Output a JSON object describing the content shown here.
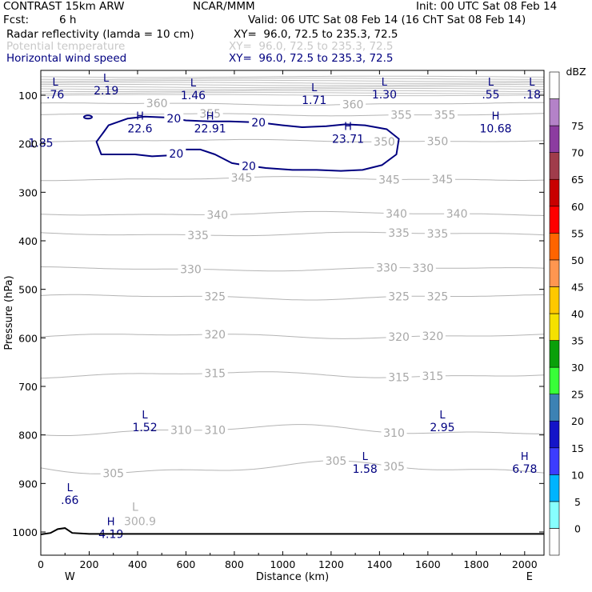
{
  "header": {
    "model": "CONTRAST 15km ARW",
    "org": "NCAR/MMM",
    "init": "Init: 00 UTC Sat 08 Feb 14",
    "fcst_label": "Fcst:",
    "fcst_value": "6 h",
    "valid": "Valid: 06 UTC Sat 08 Feb 14 (16 ChT Sat 08 Feb 14)"
  },
  "fields": [
    {
      "label": "Radar reflectivity (lamda = 10 cm)",
      "xy": "XY=  96.0, 72.5 to 235.3, 72.5",
      "color": "#000000"
    },
    {
      "label": "Potential temperature",
      "xy": "XY=  96.0, 72.5 to 235.3, 72.5",
      "color": "#bdbdbd"
    },
    {
      "label": "Horizontal wind speed",
      "xy": "XY=  96.0, 72.5 to 235.3, 72.5",
      "color": "#000080"
    }
  ],
  "chart_data": {
    "type": "contour-cross-section",
    "xlabel": "Distance (km)",
    "ylabel": "Pressure (hPa)",
    "xlim": [
      0,
      2080
    ],
    "ylim": [
      1050,
      60
    ],
    "x_ticks": [
      0,
      200,
      400,
      600,
      800,
      1000,
      1200,
      1400,
      1600,
      1800,
      2000
    ],
    "x_tick_labels": [
      "0",
      "200",
      "400",
      "600",
      "800",
      "1000",
      "1200",
      "1400",
      "1600",
      "1800",
      "2000"
    ],
    "y_ticks": [
      100,
      200,
      300,
      400,
      500,
      600,
      700,
      800,
      900,
      1000
    ],
    "y_tick_labels": [
      "100",
      "200",
      "300",
      "400",
      "500",
      "600",
      "700",
      "800",
      "900",
      "1000"
    ],
    "west_label": "W",
    "east_label": "E",
    "theta_contours": [
      {
        "label": "305",
        "p": 868,
        "amp": 10,
        "labels_x": [
          300,
          1220,
          1460
        ]
      },
      {
        "label": "310",
        "p": 790,
        "amp": 8,
        "labels_x": [
          580,
          720,
          1460
        ]
      },
      {
        "label": "315",
        "p": 676,
        "amp": 5,
        "labels_x": [
          720,
          1480,
          1620
        ]
      },
      {
        "label": "320",
        "p": 596,
        "amp": 4,
        "labels_x": [
          720,
          1480,
          1620
        ]
      },
      {
        "label": "325",
        "p": 516,
        "amp": 4,
        "labels_x": [
          720,
          1480,
          1640
        ]
      },
      {
        "label": "330",
        "p": 458,
        "amp": 3,
        "labels_x": [
          620,
          1430,
          1580
        ]
      },
      {
        "label": "335",
        "p": 386,
        "amp": 3,
        "labels_x": [
          650,
          1480,
          1640
        ]
      },
      {
        "label": "340",
        "p": 344,
        "amp": 3,
        "labels_x": [
          730,
          1470,
          1720
        ]
      },
      {
        "label": "345",
        "p": 272,
        "amp": 3,
        "labels_x": [
          830,
          1440,
          1660
        ]
      },
      {
        "label": "350",
        "p": 194,
        "amp": 2,
        "labels_x": [
          1420,
          1640
        ]
      },
      {
        "label": "355",
        "p": 140,
        "amp": 2,
        "labels_x": [
          700,
          1490,
          1670
        ]
      },
      {
        "label": "360",
        "p": 118,
        "amp": 2,
        "labels_x": [
          480,
          1290
        ]
      }
    ],
    "theta_extra_labels": [
      {
        "text": "300.9",
        "x": 410,
        "p": 986
      },
      {
        "text": "L",
        "x": 390,
        "p": 956
      }
    ],
    "wind_contour": {
      "label": "20",
      "points": [
        [
          280,
          162
        ],
        [
          360,
          148
        ],
        [
          430,
          144
        ],
        [
          520,
          146
        ],
        [
          600,
          152
        ],
        [
          700,
          154
        ],
        [
          780,
          154
        ],
        [
          900,
          156
        ],
        [
          1000,
          162
        ],
        [
          1080,
          166
        ],
        [
          1180,
          164
        ],
        [
          1260,
          160
        ],
        [
          1340,
          162
        ],
        [
          1430,
          170
        ],
        [
          1480,
          190
        ],
        [
          1470,
          222
        ],
        [
          1410,
          244
        ],
        [
          1330,
          254
        ],
        [
          1240,
          256
        ],
        [
          1140,
          254
        ],
        [
          1040,
          254
        ],
        [
          930,
          250
        ],
        [
          840,
          244
        ],
        [
          790,
          240
        ],
        [
          720,
          222
        ],
        [
          660,
          212
        ],
        [
          590,
          212
        ],
        [
          530,
          224
        ],
        [
          460,
          226
        ],
        [
          390,
          222
        ],
        [
          320,
          222
        ],
        [
          250,
          222
        ],
        [
          230,
          196
        ],
        [
          260,
          176
        ]
      ],
      "labels": [
        [
          550,
          148
        ],
        [
          900,
          156
        ],
        [
          560,
          220
        ],
        [
          860,
          246
        ]
      ]
    },
    "wind_extrema": [
      {
        "kind": "L",
        "value": ".76",
        "x": 60,
        "p": 80
      },
      {
        "kind": "L",
        "value": "2.19",
        "x": 270,
        "p": 72
      },
      {
        "kind": "L",
        "value": "1.46",
        "x": 630,
        "p": 82
      },
      {
        "kind": "L",
        "value": "1.71",
        "x": 1130,
        "p": 92
      },
      {
        "kind": "L",
        "value": "1.30",
        "x": 1420,
        "p": 80
      },
      {
        "kind": "L",
        "value": ".55",
        "x": 1860,
        "p": 80
      },
      {
        "kind": "L",
        "value": ".18",
        "x": 2030,
        "p": 80
      },
      {
        "kind": "",
        "value": "1.85",
        "x": 0,
        "p": 180
      },
      {
        "kind": "H",
        "value": "22.6",
        "x": 410,
        "p": 150
      },
      {
        "kind": "H",
        "value": "22.91",
        "x": 700,
        "p": 150
      },
      {
        "kind": "H",
        "value": "23.71",
        "x": 1270,
        "p": 172
      },
      {
        "kind": "H",
        "value": "10.68",
        "x": 1880,
        "p": 150
      },
      {
        "kind": "L",
        "value": "1.52",
        "x": 430,
        "p": 766
      },
      {
        "kind": "L",
        "value": "2.95",
        "x": 1660,
        "p": 766
      },
      {
        "kind": "L",
        "value": "1.58",
        "x": 1340,
        "p": 852
      },
      {
        "kind": "H",
        "value": "6.78",
        "x": 2000,
        "p": 852
      },
      {
        "kind": "L",
        "value": ".66",
        "x": 120,
        "p": 916
      },
      {
        "kind": "H",
        "value": "4.19",
        "x": 290,
        "p": 986
      }
    ],
    "colorbar": {
      "title": "dBZ",
      "levels": [
        "0",
        "5",
        "10",
        "15",
        "20",
        "25",
        "30",
        "35",
        "40",
        "45",
        "50",
        "55",
        "60",
        "65",
        "70",
        "75"
      ],
      "colors": [
        "#ffffff",
        "#87ffff",
        "#00b4ff",
        "#3c3cff",
        "#1414c8",
        "#3c82b4",
        "#38ff38",
        "#0aa00a",
        "#f5e100",
        "#ffc800",
        "#ff9650",
        "#ff6400",
        "#ff0000",
        "#c80000",
        "#a03c4b",
        "#8c3ca0",
        "#b482c8",
        "#ffffff"
      ]
    }
  }
}
